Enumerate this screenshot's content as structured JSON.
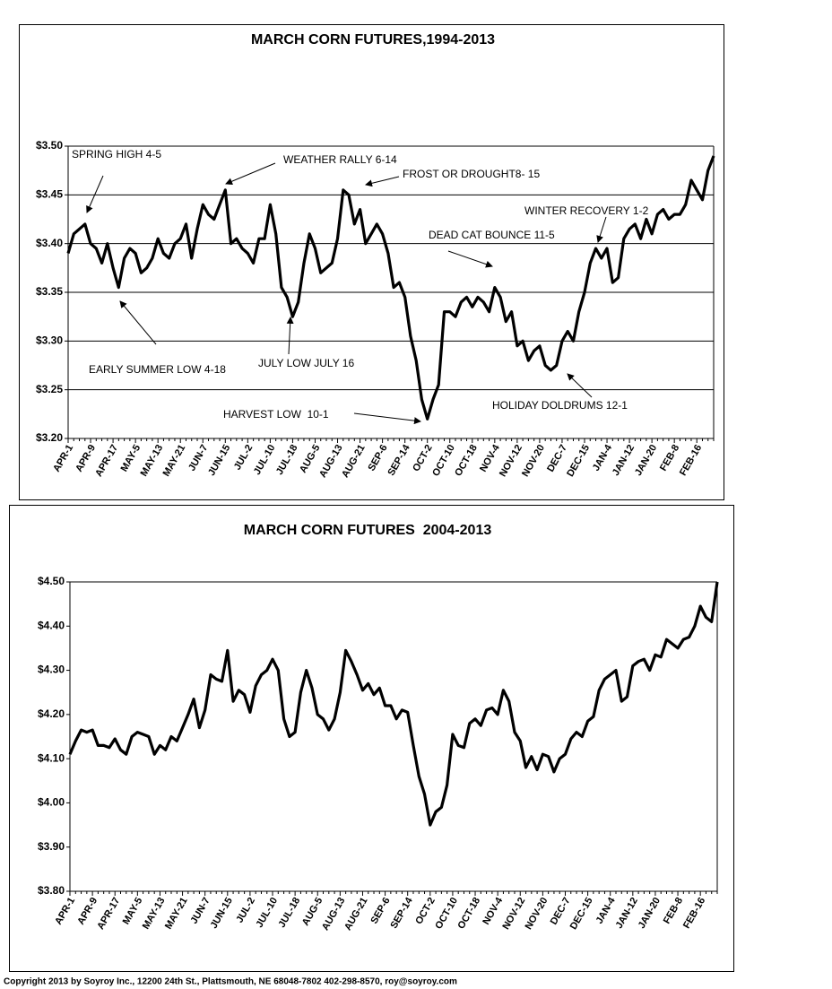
{
  "chart_data": [
    {
      "type": "line",
      "title": "MARCH CORN FUTURES,1994-2013",
      "categories": [
        "APR-1",
        null,
        null,
        null,
        "APR-9",
        null,
        null,
        null,
        "APR-17",
        null,
        null,
        null,
        "MAY-5",
        null,
        null,
        null,
        "MAY-13",
        null,
        null,
        null,
        "MAY-21",
        null,
        null,
        null,
        "JUN-7",
        null,
        null,
        null,
        "JUN-15",
        null,
        null,
        null,
        "JUL-2",
        null,
        null,
        null,
        "JUL-10",
        null,
        null,
        null,
        "JUL-18",
        null,
        null,
        null,
        "AUG-5",
        null,
        null,
        null,
        "AUG-13",
        null,
        null,
        null,
        "AUG-21",
        null,
        null,
        null,
        "SEP-6",
        null,
        null,
        null,
        "SEP-14",
        null,
        null,
        null,
        "OCT-2",
        null,
        null,
        null,
        "OCT-10",
        null,
        null,
        null,
        "OCT-18",
        null,
        null,
        null,
        "NOV-4",
        null,
        null,
        null,
        "NOV-12",
        null,
        null,
        null,
        "NOV-20",
        null,
        null,
        null,
        "DEC-7",
        null,
        null,
        null,
        "DEC-15",
        null,
        null,
        null,
        "JAN-4",
        null,
        null,
        null,
        "JAN-12",
        null,
        null,
        null,
        "JAN-20",
        null,
        null,
        null,
        "FEB-8",
        null,
        null,
        null,
        "FEB-16",
        null,
        null,
        null
      ],
      "values": [
        3.39,
        3.41,
        3.415,
        3.42,
        3.4,
        3.395,
        3.38,
        3.4,
        3.375,
        3.355,
        3.385,
        3.395,
        3.39,
        3.37,
        3.375,
        3.385,
        3.405,
        3.39,
        3.385,
        3.4,
        3.405,
        3.42,
        3.385,
        3.415,
        3.44,
        3.43,
        3.425,
        3.44,
        3.455,
        3.4,
        3.405,
        3.395,
        3.39,
        3.38,
        3.405,
        3.405,
        3.44,
        3.41,
        3.355,
        3.345,
        3.325,
        3.34,
        3.38,
        3.41,
        3.395,
        3.37,
        3.375,
        3.38,
        3.405,
        3.455,
        3.45,
        3.42,
        3.435,
        3.4,
        3.41,
        3.42,
        3.41,
        3.39,
        3.355,
        3.36,
        3.345,
        3.305,
        3.28,
        3.24,
        3.22,
        3.24,
        3.255,
        3.33,
        3.33,
        3.325,
        3.34,
        3.345,
        3.335,
        3.345,
        3.34,
        3.33,
        3.355,
        3.345,
        3.32,
        3.33,
        3.295,
        3.3,
        3.28,
        3.29,
        3.295,
        3.275,
        3.27,
        3.275,
        3.3,
        3.31,
        3.3,
        3.33,
        3.35,
        3.38,
        3.395,
        3.385,
        3.395,
        3.36,
        3.365,
        3.405,
        3.415,
        3.42,
        3.405,
        3.425,
        3.41,
        3.43,
        3.435,
        3.425,
        3.43,
        3.43,
        3.44,
        3.465,
        3.455,
        3.445,
        3.475,
        3.49
      ],
      "color": "#000000",
      "ylim": [
        3.2,
        3.5
      ],
      "yticks": [
        {
          "value": 3.2,
          "label": "$3.20"
        },
        {
          "value": 3.25,
          "label": "$3.25"
        },
        {
          "value": 3.3,
          "label": "$3.30"
        },
        {
          "value": 3.35,
          "label": "$3.35"
        },
        {
          "value": 3.4,
          "label": "$3.40"
        },
        {
          "value": 3.45,
          "label": "$3.45"
        },
        {
          "value": 3.5,
          "label": "$3.50"
        }
      ],
      "grid": true,
      "annotations": [
        "SPRING HIGH 4-5",
        "WEATHER RALLY 6-14",
        "FROST OR DROUGHT8- 15",
        "WINTER RECOVERY 1-2",
        "DEAD CAT BOUNCE 11-5",
        "EARLY SUMMER LOW 4-18",
        "JULY LOW JULY 16",
        "HARVEST LOW  10-1",
        "HOLIDAY DOLDRUMS 12-1"
      ]
    },
    {
      "type": "line",
      "title": "MARCH CORN FUTURES  2004-2013",
      "categories": [
        "APR-1",
        null,
        null,
        null,
        "APR-9",
        null,
        null,
        null,
        "APR-17",
        null,
        null,
        null,
        "MAY-5",
        null,
        null,
        null,
        "MAY-13",
        null,
        null,
        null,
        "MAY-21",
        null,
        null,
        null,
        "JUN-7",
        null,
        null,
        null,
        "JUN-15",
        null,
        null,
        null,
        "JUL-2",
        null,
        null,
        null,
        "JUL-10",
        null,
        null,
        null,
        "JUL-18",
        null,
        null,
        null,
        "AUG-5",
        null,
        null,
        null,
        "AUG-13",
        null,
        null,
        null,
        "AUG-21",
        null,
        null,
        null,
        "SEP-6",
        null,
        null,
        null,
        "SEP-14",
        null,
        null,
        null,
        "OCT-2",
        null,
        null,
        null,
        "OCT-10",
        null,
        null,
        null,
        "OCT-18",
        null,
        null,
        null,
        "NOV-4",
        null,
        null,
        null,
        "NOV-12",
        null,
        null,
        null,
        "NOV-20",
        null,
        null,
        null,
        "DEC-7",
        null,
        null,
        null,
        "DEC-15",
        null,
        null,
        null,
        "JAN-4",
        null,
        null,
        null,
        "JAN-12",
        null,
        null,
        null,
        "JAN-20",
        null,
        null,
        null,
        "FEB-8",
        null,
        null,
        null,
        "FEB-16",
        null,
        null,
        null
      ],
      "values": [
        4.11,
        4.14,
        4.165,
        4.16,
        4.165,
        4.13,
        4.13,
        4.125,
        4.145,
        4.12,
        4.11,
        4.15,
        4.16,
        4.155,
        4.15,
        4.11,
        4.13,
        4.12,
        4.15,
        4.14,
        4.17,
        4.2,
        4.235,
        4.17,
        4.21,
        4.29,
        4.28,
        4.275,
        4.345,
        4.23,
        4.255,
        4.245,
        4.205,
        4.265,
        4.29,
        4.3,
        4.325,
        4.3,
        4.19,
        4.15,
        4.16,
        4.25,
        4.3,
        4.26,
        4.2,
        4.19,
        4.165,
        4.19,
        4.25,
        4.345,
        4.32,
        4.29,
        4.255,
        4.27,
        4.245,
        4.26,
        4.22,
        4.22,
        4.19,
        4.21,
        4.205,
        4.13,
        4.06,
        4.02,
        3.95,
        3.98,
        3.99,
        4.04,
        4.155,
        4.13,
        4.125,
        4.18,
        4.19,
        4.175,
        4.21,
        4.215,
        4.2,
        4.255,
        4.23,
        4.16,
        4.14,
        4.08,
        4.105,
        4.075,
        4.11,
        4.105,
        4.07,
        4.1,
        4.11,
        4.145,
        4.16,
        4.15,
        4.185,
        4.195,
        4.255,
        4.28,
        4.29,
        4.3,
        4.23,
        4.24,
        4.31,
        4.32,
        4.325,
        4.3,
        4.335,
        4.33,
        4.37,
        4.36,
        4.35,
        4.37,
        4.375,
        4.4,
        4.445,
        4.42,
        4.41,
        4.5
      ],
      "color": "#000000",
      "ylim": [
        3.8,
        4.5
      ],
      "yticks": [
        {
          "value": 3.8,
          "label": "$3.80"
        },
        {
          "value": 3.9,
          "label": "$3.90"
        },
        {
          "value": 4.0,
          "label": "$4.00"
        },
        {
          "value": 4.1,
          "label": "$4.10"
        },
        {
          "value": 4.2,
          "label": "$4.20"
        },
        {
          "value": 4.3,
          "label": "$4.30"
        },
        {
          "value": 4.4,
          "label": "$4.40"
        },
        {
          "value": 4.5,
          "label": "$4.50"
        }
      ],
      "grid": false
    }
  ],
  "footer": "Copyright 2013 by Soyroy Inc., 12200 24th St., Plattsmouth, NE 68048-7802 402-298-8570, roy@soyroy.com"
}
